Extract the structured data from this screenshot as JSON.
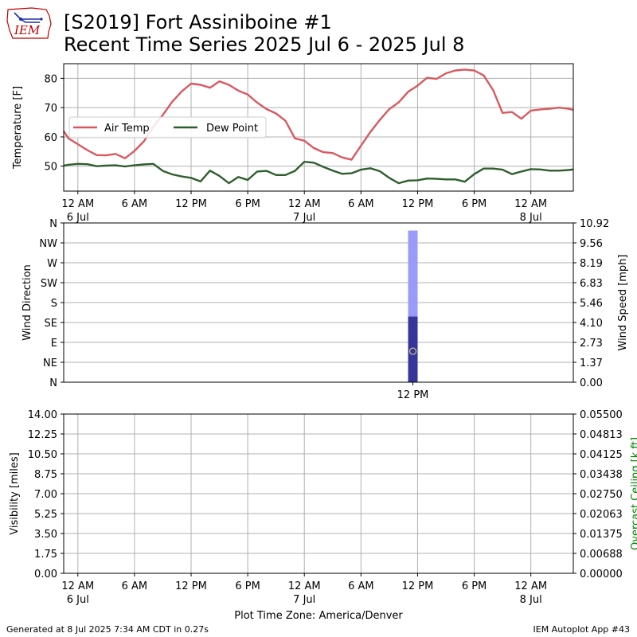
{
  "header": {
    "title_line1": "[S2019] Fort Assiniboine #1",
    "title_line2": "Recent Time Series 2025 Jul 6 - 2025 Jul 8",
    "logo_text": "IEM"
  },
  "footer": {
    "generated": "Generated at 8 Jul 2025 7:34 AM CDT in 0.27s",
    "app": "IEM Autoplot App #43"
  },
  "colors": {
    "air_temp": "#d9595f",
    "dew_point": "#2e5e2e",
    "wind_light": "#9a9af8",
    "wind_dark": "#36369a",
    "ceiling_axis": "#008000",
    "grid": "#b0b0b0"
  },
  "chart_data": [
    {
      "type": "line",
      "ylabel": "Temperature [F]",
      "ylim": [
        41.5,
        85
      ],
      "yticks": [
        50,
        60,
        70,
        80
      ],
      "x_unit": "hours after 2025-07-06 00:00 America/Denver",
      "xlim": [
        -1.5,
        52.5
      ],
      "xticks": [
        {
          "x": 0,
          "label": "12 AM",
          "sub": "6 Jul"
        },
        {
          "x": 6,
          "label": "6 AM",
          "sub": ""
        },
        {
          "x": 12,
          "label": "12 PM",
          "sub": ""
        },
        {
          "x": 18,
          "label": "6 PM",
          "sub": ""
        },
        {
          "x": 24,
          "label": "12 AM",
          "sub": "7 Jul"
        },
        {
          "x": 30,
          "label": "6 AM",
          "sub": ""
        },
        {
          "x": 36,
          "label": "12 PM",
          "sub": ""
        },
        {
          "x": 42,
          "label": "6 PM",
          "sub": ""
        },
        {
          "x": 48,
          "label": "12 AM",
          "sub": "8 Jul"
        }
      ],
      "legend": {
        "placement": "center-left",
        "entries": [
          "Air Temp",
          "Dew Point"
        ]
      },
      "grid": true,
      "series": [
        {
          "name": "Air Temp",
          "x": [
            -1.5,
            -1,
            0,
            1,
            2,
            3,
            4,
            5,
            6,
            7,
            8,
            9,
            10,
            11,
            12,
            13,
            14,
            15,
            16,
            17,
            18,
            19,
            20,
            21,
            22,
            23,
            24,
            25,
            26,
            27,
            28,
            29,
            30,
            31,
            32,
            33,
            34,
            35,
            36,
            37,
            38,
            39,
            40,
            41,
            42,
            43,
            44,
            45,
            46,
            47,
            48,
            49,
            50,
            51,
            52,
            52.5
          ],
          "values": [
            62,
            59.5,
            57.5,
            55.5,
            53.8,
            53.7,
            54.2,
            52.7,
            55.2,
            58.5,
            63.5,
            67.5,
            72,
            75.5,
            78.2,
            77.8,
            76.8,
            79,
            77.8,
            75.8,
            74.5,
            71.7,
            69.5,
            68,
            65.5,
            59.5,
            58.7,
            56.2,
            54.8,
            54.5,
            53,
            52.2,
            57,
            61.7,
            65.8,
            69.5,
            71.8,
            75.4,
            77.5,
            80.2,
            79.8,
            81.7,
            82.7,
            83,
            82.7,
            81,
            76,
            68.2,
            68.5,
            66.2,
            69,
            69.4,
            69.6,
            70,
            69.6,
            69.2
          ]
        },
        {
          "name": "Dew Point",
          "x": [
            -1.5,
            -1,
            0,
            1,
            2,
            3,
            4,
            5,
            6,
            7,
            8,
            9,
            10,
            11,
            12,
            13,
            14,
            15,
            16,
            17,
            18,
            19,
            20,
            21,
            22,
            23,
            24,
            25,
            26,
            27,
            28,
            29,
            30,
            31,
            32,
            33,
            34,
            35,
            36,
            37,
            38,
            39,
            40,
            41,
            42,
            43,
            44,
            45,
            46,
            47,
            48,
            49,
            50,
            51,
            52,
            52.5
          ],
          "values": [
            50.2,
            50.5,
            50.8,
            50.7,
            50,
            50.2,
            50.3,
            49.9,
            50.3,
            50.6,
            50.8,
            48.4,
            47.2,
            46.5,
            46,
            44.8,
            48.5,
            46.7,
            44.2,
            46.3,
            45.3,
            48.2,
            48.4,
            47,
            47,
            48.4,
            51.5,
            51.2,
            49.8,
            48.5,
            47.4,
            47.6,
            48.8,
            49.3,
            48.3,
            46,
            44.2,
            45.1,
            45.2,
            45.8,
            45.7,
            45.5,
            45.5,
            44.7,
            47.3,
            49.2,
            49.2,
            48.8,
            47.3,
            48.2,
            49,
            48.9,
            48.5,
            48.5,
            48.7,
            48.9
          ]
        }
      ]
    },
    {
      "type": "bar",
      "ylabel": "Wind Direction",
      "ylabel_right": "Wind Speed [mph]",
      "ylim": [
        0,
        360
      ],
      "yticks_left": [
        "N",
        "NE",
        "E",
        "SE",
        "S",
        "SW",
        "W",
        "NW",
        "N"
      ],
      "ylim_right": [
        0,
        10.92
      ],
      "yticks_right": [
        "0.00",
        "1.37",
        "2.73",
        "4.10",
        "5.46",
        "6.83",
        "8.19",
        "9.56",
        "10.92"
      ],
      "xlim": [
        -1.5,
        52.5
      ],
      "xticks": [
        {
          "x": 35.5,
          "label": "12 PM"
        }
      ],
      "grid": true,
      "series": [
        {
          "name": "gust",
          "x": [
            35.5
          ],
          "values": [
            10.4
          ]
        },
        {
          "name": "speed",
          "x": [
            35.5
          ],
          "values": [
            4.5
          ]
        },
        {
          "name": "direction",
          "x": [
            35.5
          ],
          "values": [
            70
          ]
        }
      ]
    },
    {
      "type": "line",
      "ylabel": "Visibility [miles]",
      "ylabel_right": "Overcast Ceiling [k ft]",
      "ylim": [
        0,
        14
      ],
      "yticks_left": [
        "0.00",
        "1.75",
        "3.50",
        "5.25",
        "7.00",
        "8.75",
        "10.50",
        "12.25",
        "14.00"
      ],
      "ylim_right": [
        0,
        0.055
      ],
      "yticks_right": [
        "0.00000",
        "0.00688",
        "0.01375",
        "0.02063",
        "0.02750",
        "0.03438",
        "0.04125",
        "0.04813",
        "0.05500"
      ],
      "xlim": [
        -1.5,
        52.5
      ],
      "xticks": [
        {
          "x": 0,
          "label": "12 AM",
          "sub": "6 Jul"
        },
        {
          "x": 6,
          "label": "6 AM",
          "sub": ""
        },
        {
          "x": 12,
          "label": "12 PM",
          "sub": ""
        },
        {
          "x": 18,
          "label": "6 PM",
          "sub": ""
        },
        {
          "x": 24,
          "label": "12 AM",
          "sub": "7 Jul"
        },
        {
          "x": 30,
          "label": "6 AM",
          "sub": ""
        },
        {
          "x": 36,
          "label": "12 PM",
          "sub": ""
        },
        {
          "x": 42,
          "label": "6 PM",
          "sub": ""
        },
        {
          "x": 48,
          "label": "12 AM",
          "sub": "8 Jul"
        }
      ],
      "xlabel": "Plot Time Zone: America/Denver",
      "grid": true,
      "series": []
    }
  ]
}
